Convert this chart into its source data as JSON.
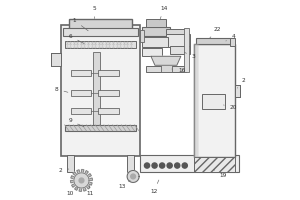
{
  "bg": "#ffffff",
  "lc": "#666666",
  "gray1": "#e8e8e8",
  "gray2": "#d8d8d8",
  "gray3": "#c8c8c8",
  "gray4": "#b8b8b8",
  "white": "#f5f5f5"
}
